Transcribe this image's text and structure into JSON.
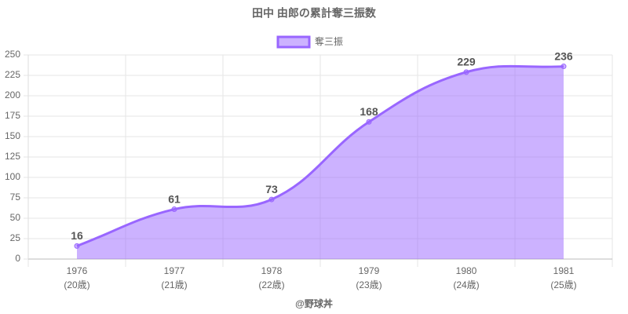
{
  "chart_data": {
    "type": "line",
    "title": "田中 由郎の累計奪三振数",
    "categories": [
      [
        "1976",
        "(20歳)"
      ],
      [
        "1977",
        "(21歳)"
      ],
      [
        "1978",
        "(22歳)"
      ],
      [
        "1979",
        "(23歳)"
      ],
      [
        "1980",
        "(24歳)"
      ],
      [
        "1981",
        "(25歳)"
      ]
    ],
    "series": [
      {
        "name": "奪三振",
        "color": "#9966ff",
        "fill": "rgba(153,102,255,0.5)",
        "values": [
          16,
          61,
          73,
          168,
          229,
          236
        ]
      }
    ],
    "ylim": [
      0,
      250
    ],
    "yticks": [
      0,
      25,
      50,
      75,
      100,
      125,
      150,
      175,
      200,
      225,
      250
    ],
    "grid": true,
    "legend": "top",
    "credit": "@野球丼"
  }
}
